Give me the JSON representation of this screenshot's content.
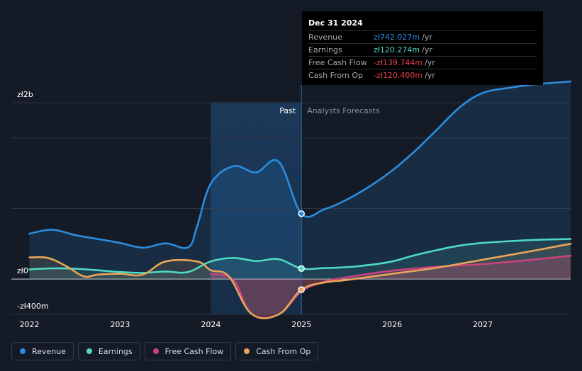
{
  "chart_data": {
    "type": "line",
    "x_range": [
      2021.8,
      2027.97
    ],
    "ylim": [
      -400,
      2000
    ],
    "divider_x": 2025.0,
    "past_start_x": 2024.0,
    "past_label": "Past",
    "forecast_label": "Analysts Forecasts",
    "x_ticks": [
      2022,
      2023,
      2024,
      2025,
      2026,
      2027
    ],
    "x_tick_labels": [
      "2022",
      "2023",
      "2024",
      "2025",
      "2026",
      "2027"
    ],
    "y_labels": [
      {
        "value": 2000,
        "label": "zł2b"
      },
      {
        "value": 0,
        "label": "zł0"
      },
      {
        "value": -400,
        "label": "-zł400m"
      }
    ],
    "gridlines": [
      2000,
      1600,
      800,
      0,
      -400
    ],
    "series": [
      {
        "name": "Revenue",
        "color": "#2a8ddf",
        "points": [
          [
            2022.0,
            515
          ],
          [
            2022.25,
            560
          ],
          [
            2022.5,
            500
          ],
          [
            2022.75,
            455
          ],
          [
            2023.0,
            410
          ],
          [
            2023.25,
            355
          ],
          [
            2023.5,
            405
          ],
          [
            2023.75,
            360
          ],
          [
            2023.85,
            600
          ],
          [
            2024.0,
            1080
          ],
          [
            2024.25,
            1280
          ],
          [
            2024.5,
            1210
          ],
          [
            2024.75,
            1330
          ],
          [
            2025.0,
            742
          ],
          [
            2025.25,
            790
          ],
          [
            2025.5,
            900
          ],
          [
            2025.75,
            1050
          ],
          [
            2026.0,
            1230
          ],
          [
            2026.25,
            1450
          ],
          [
            2026.5,
            1700
          ],
          [
            2026.75,
            1950
          ],
          [
            2027.0,
            2110
          ],
          [
            2027.3,
            2170
          ],
          [
            2027.6,
            2210
          ],
          [
            2027.97,
            2240
          ]
        ]
      },
      {
        "name": "Earnings",
        "color": "#4fd8c4",
        "points": [
          [
            2022.0,
            110
          ],
          [
            2022.25,
            122
          ],
          [
            2022.5,
            118
          ],
          [
            2022.75,
            100
          ],
          [
            2023.0,
            80
          ],
          [
            2023.25,
            70
          ],
          [
            2023.5,
            85
          ],
          [
            2023.75,
            80
          ],
          [
            2024.0,
            200
          ],
          [
            2024.25,
            240
          ],
          [
            2024.5,
            205
          ],
          [
            2024.75,
            225
          ],
          [
            2025.0,
            120
          ],
          [
            2025.25,
            125
          ],
          [
            2025.5,
            135
          ],
          [
            2025.75,
            160
          ],
          [
            2026.0,
            200
          ],
          [
            2026.25,
            270
          ],
          [
            2026.5,
            330
          ],
          [
            2026.75,
            380
          ],
          [
            2027.0,
            410
          ],
          [
            2027.3,
            430
          ],
          [
            2027.6,
            445
          ],
          [
            2027.97,
            455
          ]
        ]
      },
      {
        "name": "Free Cash Flow",
        "color": "#c9417f",
        "points": [
          [
            2024.0,
            60
          ],
          [
            2024.25,
            -10
          ],
          [
            2024.45,
            -395
          ],
          [
            2024.75,
            -400
          ],
          [
            2025.0,
            -139.7
          ],
          [
            2025.25,
            -30
          ],
          [
            2025.5,
            20
          ],
          [
            2025.75,
            60
          ],
          [
            2026.0,
            95
          ],
          [
            2026.5,
            140
          ],
          [
            2027.0,
            170
          ],
          [
            2027.5,
            215
          ],
          [
            2027.97,
            265
          ]
        ]
      },
      {
        "name": "Cash From Op",
        "color": "#e9a55a",
        "points": [
          [
            2022.0,
            245
          ],
          [
            2022.2,
            240
          ],
          [
            2022.4,
            150
          ],
          [
            2022.6,
            30
          ],
          [
            2022.75,
            50
          ],
          [
            2023.0,
            60
          ],
          [
            2023.25,
            50
          ],
          [
            2023.5,
            200
          ],
          [
            2023.85,
            200
          ],
          [
            2024.0,
            100
          ],
          [
            2024.2,
            30
          ],
          [
            2024.45,
            -395
          ],
          [
            2024.75,
            -400
          ],
          [
            2025.0,
            -120.4
          ],
          [
            2025.25,
            -40
          ],
          [
            2025.5,
            -10
          ],
          [
            2026.0,
            60
          ],
          [
            2026.5,
            130
          ],
          [
            2027.0,
            220
          ],
          [
            2027.5,
            310
          ],
          [
            2027.97,
            400
          ]
        ]
      }
    ]
  },
  "tooltip": {
    "date": "Dec 31 2024",
    "rows": [
      {
        "label": "Revenue",
        "value": "zł742.027m",
        "unit": "/yr",
        "color": "#2a8ddf"
      },
      {
        "label": "Earnings",
        "value": "zł120.274m",
        "unit": "/yr",
        "color": "#4fd8c4"
      },
      {
        "label": "Free Cash Flow",
        "value": "-zł139.744m",
        "unit": "/yr",
        "color": "#e0404d"
      },
      {
        "label": "Cash From Op",
        "value": "-zł120.400m",
        "unit": "/yr",
        "color": "#e0404d"
      }
    ]
  },
  "legend": [
    {
      "label": "Revenue",
      "color": "#2a8ddf"
    },
    {
      "label": "Earnings",
      "color": "#4fd8c4"
    },
    {
      "label": "Free Cash Flow",
      "color": "#c9417f"
    },
    {
      "label": "Cash From Op",
      "color": "#e9a55a"
    }
  ]
}
